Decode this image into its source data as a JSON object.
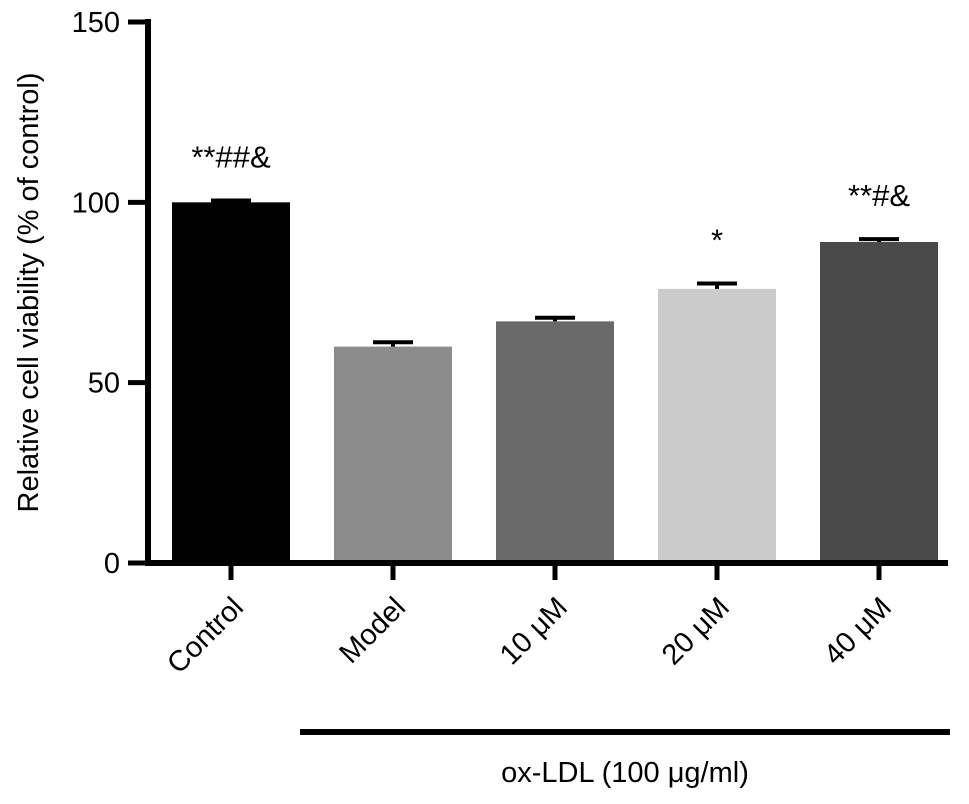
{
  "chart_data": {
    "type": "bar",
    "categories": [
      "Control",
      "Model",
      "10 μM",
      "20 μM",
      "40 μM"
    ],
    "values": [
      100,
      60,
      67,
      76,
      89
    ],
    "errors": [
      0.5,
      1.2,
      1.0,
      1.5,
      0.8
    ],
    "colors": [
      "#000000",
      "#8c8c8c",
      "#696969",
      "#cbcbcb",
      "#4a4a4a"
    ],
    "annotations": [
      "**##&",
      "",
      "",
      "*",
      "**#&"
    ],
    "ylabel": "Relative cell viability (% of control)",
    "xlabel": "",
    "ylim": [
      0,
      150
    ],
    "yticks": [
      0,
      50,
      100,
      150
    ],
    "grid": false,
    "group_label": "ox-LDL (100 μg/ml)",
    "group_members": [
      "Model",
      "10 μM",
      "20 μM",
      "40 μM"
    ]
  }
}
